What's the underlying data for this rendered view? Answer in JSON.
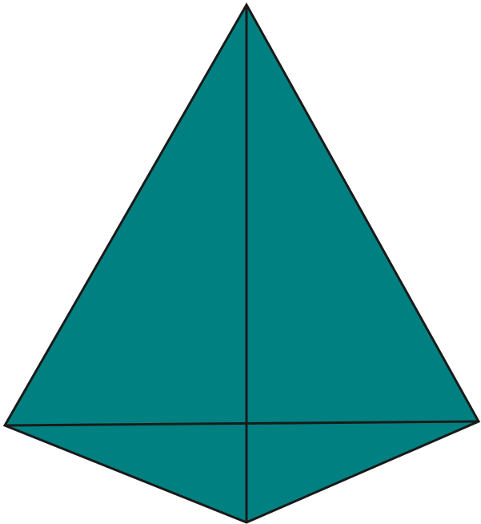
{
  "diagram": {
    "shape": "kite",
    "fill_color": "#008080",
    "stroke_color": "#1a1a1a",
    "background_color": "#ffffff",
    "diagonals": [
      "vertical",
      "horizontal"
    ]
  }
}
